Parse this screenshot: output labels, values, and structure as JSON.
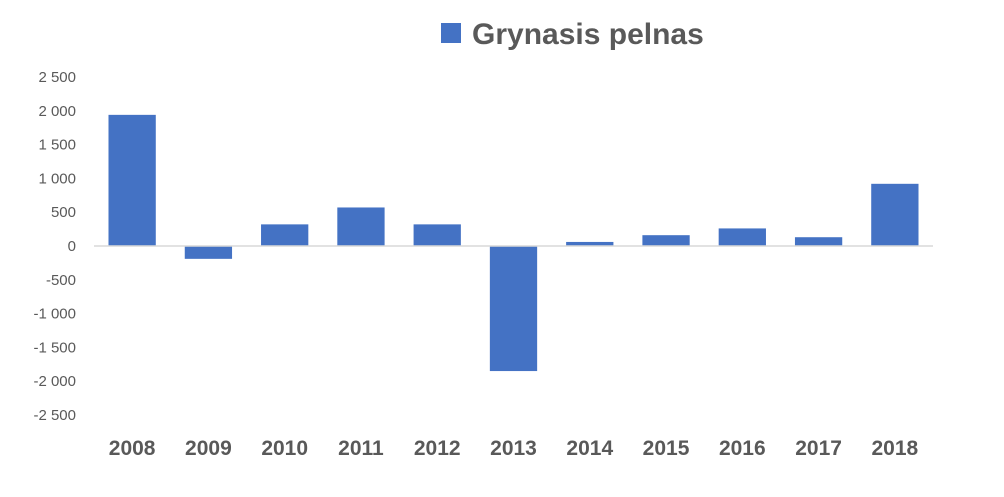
{
  "chart_data": {
    "type": "bar",
    "categories": [
      "2008",
      "2009",
      "2010",
      "2011",
      "2012",
      "2013",
      "2014",
      "2015",
      "2016",
      "2017",
      "2018"
    ],
    "series": [
      {
        "name": "Grynasis pelnas",
        "color": "#4472C4",
        "values": [
          1940,
          -190,
          320,
          570,
          320,
          -1850,
          60,
          160,
          260,
          130,
          920
        ]
      }
    ],
    "title": "",
    "xlabel": "",
    "ylabel": "",
    "ylim": [
      -2500,
      2500
    ],
    "yticks": [
      2500,
      2000,
      1500,
      1000,
      500,
      0,
      -500,
      -1000,
      -1500,
      -2000,
      -2500
    ],
    "ytick_labels": [
      "2 500",
      "2 000",
      "1 500",
      "1 000",
      "500",
      "0",
      "-500",
      "-1 000",
      "-1 500",
      "-2 000",
      "-2 500"
    ],
    "grid": false,
    "legend_position": "top-center",
    "axis_color": "#D9D9D9"
  }
}
